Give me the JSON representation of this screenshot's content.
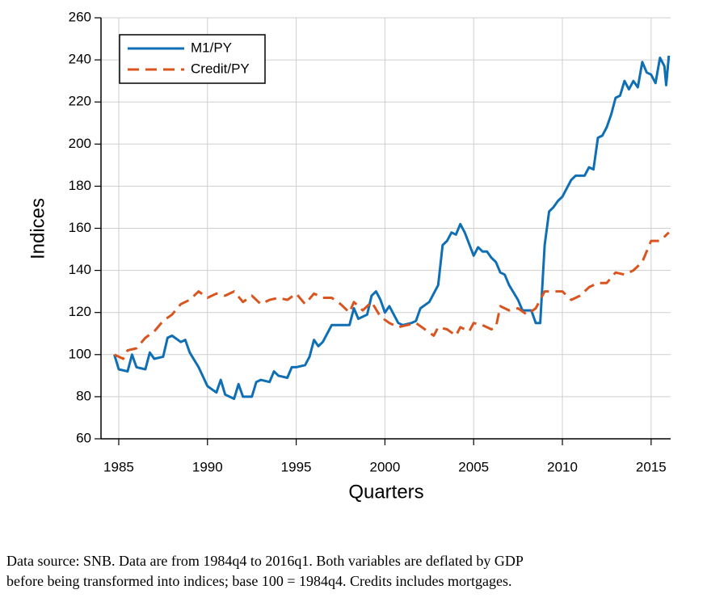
{
  "chart_data": {
    "type": "line",
    "xlabel": "Quarters",
    "ylabel": "Indices",
    "caption": [
      "Data source: SNB. Data are from 1984q4 to 2016q1. Both variables are deflated by GDP",
      "before being transformed into indices; base 100 = 1984q4. Credits includes mortgages."
    ],
    "xlim": [
      1984,
      2016.1
    ],
    "xticks": [
      1985,
      1990,
      1995,
      2000,
      2005,
      2010,
      2015
    ],
    "ylim": [
      60,
      260
    ],
    "yticks": [
      60,
      80,
      100,
      120,
      140,
      160,
      180,
      200,
      220,
      240,
      260
    ],
    "grid": true,
    "legend": "upper left",
    "series": [
      {
        "name": "M1/PY",
        "color": "#0f6fb5",
        "dash": "solid",
        "x": [
          1984.75,
          1985,
          1985.5,
          1985.75,
          1986,
          1986.5,
          1986.75,
          1987,
          1987.5,
          1987.75,
          1988,
          1988.5,
          1988.75,
          1989,
          1989.5,
          1990,
          1990.5,
          1990.75,
          1991,
          1991.5,
          1991.75,
          1992,
          1992.5,
          1992.75,
          1993,
          1993.5,
          1993.75,
          1994,
          1994.5,
          1994.75,
          1995,
          1995.5,
          1995.75,
          1996,
          1996.25,
          1996.5,
          1997,
          1997.5,
          1998,
          1998.25,
          1998.5,
          1999,
          1999.25,
          1999.5,
          1999.75,
          2000,
          2000.25,
          2000.75,
          2001,
          2001.5,
          2001.75,
          2002,
          2002.5,
          2003,
          2003.25,
          2003.5,
          2003.75,
          2004,
          2004.25,
          2004.5,
          2005,
          2005.25,
          2005.5,
          2005.75,
          2006,
          2006.25,
          2006.5,
          2006.75,
          2007,
          2007.5,
          2007.75,
          2008,
          2008.25,
          2008.5,
          2008.75,
          2009,
          2009.25,
          2009.5,
          2009.75,
          2010,
          2010.5,
          2010.75,
          2011,
          2011.25,
          2011.5,
          2011.75,
          2012,
          2012.25,
          2012.5,
          2012.75,
          2013,
          2013.25,
          2013.5,
          2013.75,
          2014,
          2014.25,
          2014.5,
          2014.75,
          2015,
          2015.25,
          2015.5,
          2015.75,
          2015.85,
          2016
        ],
        "values": [
          100,
          93,
          92,
          100,
          94,
          93,
          101,
          98,
          99,
          108,
          109,
          106,
          107,
          101,
          94,
          85,
          82,
          88,
          81,
          79,
          86,
          80,
          80,
          87,
          88,
          87,
          92,
          90,
          89,
          94,
          94,
          95,
          99,
          107,
          104,
          106,
          114,
          114,
          114,
          122,
          117,
          119,
          128,
          130,
          126,
          120,
          123,
          115,
          114,
          115,
          116,
          122,
          125,
          133,
          152,
          154,
          158,
          157,
          162,
          158,
          147,
          151,
          149,
          149,
          146,
          144,
          139,
          138,
          133,
          126,
          121,
          121,
          121,
          115,
          115,
          152,
          168,
          170,
          173,
          175,
          183,
          185,
          185,
          185,
          189,
          188,
          203,
          204,
          208,
          214,
          222,
          223,
          230,
          226,
          230,
          227,
          239,
          234,
          233,
          229,
          241,
          237,
          228,
          242
        ]
      },
      {
        "name": "Credit/PY",
        "color": "#d9541e",
        "dash": "dashed",
        "x": [
          1984.75,
          1985.25,
          1985.5,
          1986,
          1986.5,
          1987,
          1987.5,
          1988,
          1988.5,
          1989,
          1989.5,
          1990,
          1990.5,
          1991,
          1991.5,
          1992,
          1992.5,
          1993,
          1993.5,
          1994,
          1994.5,
          1995,
          1995.5,
          1996,
          1996.5,
          1997,
          1997.5,
          1998,
          1998.25,
          1998.75,
          1999.25,
          1999.75,
          2000.25,
          2000.75,
          2001.25,
          2001.75,
          2002.25,
          2002.75,
          2003,
          2003.5,
          2004,
          2004.25,
          2004.75,
          2005,
          2005.5,
          2006,
          2006.25,
          2006.5,
          2007,
          2007.5,
          2008,
          2008.5,
          2009,
          2009.5,
          2010,
          2010.5,
          2011,
          2011.5,
          2012,
          2012.5,
          2013,
          2013.5,
          2014,
          2014.5,
          2015,
          2015.5,
          2016
        ],
        "values": [
          100,
          98,
          102,
          103,
          108,
          111,
          116,
          119,
          124,
          126,
          130,
          127,
          129,
          128,
          130,
          125,
          128,
          124,
          126,
          127,
          126,
          129,
          124,
          129,
          127,
          127,
          124,
          120,
          125,
          121,
          125,
          118,
          115,
          113,
          114,
          115,
          112,
          109,
          113,
          112,
          109,
          113,
          111,
          115,
          114,
          112,
          113,
          123,
          121,
          122,
          119,
          122,
          130,
          130,
          130,
          126,
          128,
          132,
          134,
          134,
          139,
          138,
          140,
          144,
          154,
          154,
          158
        ]
      }
    ]
  }
}
